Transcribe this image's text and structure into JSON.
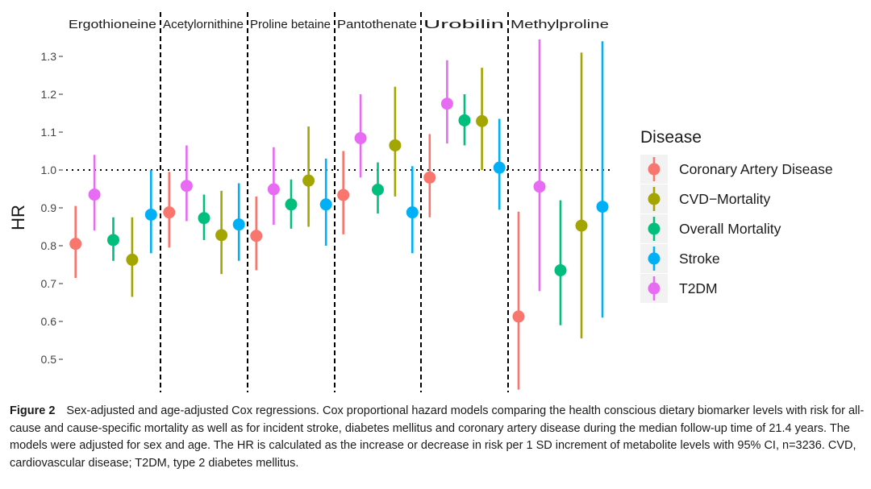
{
  "chart_data": {
    "type": "scatter",
    "subtype": "point-range faceted",
    "ylabel": "HR",
    "ylim": [
      0.42,
      1.36
    ],
    "yticks": [
      0.5,
      0.6,
      0.7,
      0.8,
      0.9,
      1.0,
      1.1,
      1.2,
      1.3
    ],
    "ytick_labels": [
      "0.5",
      "0.6",
      "0.7",
      "0.8",
      "0.9",
      "1.0",
      "1.1",
      "1.2",
      "1.3"
    ],
    "reference_line": 1.0,
    "legend": {
      "title": "Disease",
      "position": "right",
      "entries": [
        {
          "name": "Coronary Artery Disease",
          "color": "#F8766D"
        },
        {
          "name": "CVD−Mortality",
          "color": "#A3A500"
        },
        {
          "name": "Overall Mortality",
          "color": "#00BF7D"
        },
        {
          "name": "Stroke",
          "color": "#00B0F6"
        },
        {
          "name": "T2DM",
          "color": "#E76BF3"
        }
      ]
    },
    "panels": [
      {
        "label": "Ergothioneine",
        "points": [
          {
            "disease": "Coronary Artery Disease",
            "hr": 0.805,
            "lo": 0.715,
            "hi": 0.905
          },
          {
            "disease": "T2DM",
            "hr": 0.935,
            "lo": 0.84,
            "hi": 1.04
          },
          {
            "disease": "Overall Mortality",
            "hr": 0.815,
            "lo": 0.76,
            "hi": 0.875
          },
          {
            "disease": "CVD−Mortality",
            "hr": 0.763,
            "lo": 0.665,
            "hi": 0.875
          },
          {
            "disease": "Stroke",
            "hr": 0.882,
            "lo": 0.78,
            "hi": 1.0
          }
        ]
      },
      {
        "label": "Acetylornithine",
        "points": [
          {
            "disease": "Coronary Artery Disease",
            "hr": 0.888,
            "lo": 0.795,
            "hi": 0.995
          },
          {
            "disease": "T2DM",
            "hr": 0.958,
            "lo": 0.865,
            "hi": 1.065
          },
          {
            "disease": "Overall Mortality",
            "hr": 0.873,
            "lo": 0.815,
            "hi": 0.935
          },
          {
            "disease": "CVD−Mortality",
            "hr": 0.828,
            "lo": 0.725,
            "hi": 0.945
          },
          {
            "disease": "Stroke",
            "hr": 0.856,
            "lo": 0.76,
            "hi": 0.965
          }
        ]
      },
      {
        "label": "Proline betaine",
        "points": [
          {
            "disease": "Coronary Artery Disease",
            "hr": 0.826,
            "lo": 0.735,
            "hi": 0.93
          },
          {
            "disease": "T2DM",
            "hr": 0.949,
            "lo": 0.855,
            "hi": 1.06
          },
          {
            "disease": "Overall Mortality",
            "hr": 0.909,
            "lo": 0.845,
            "hi": 0.975
          },
          {
            "disease": "CVD−Mortality",
            "hr": 0.972,
            "lo": 0.85,
            "hi": 1.115
          },
          {
            "disease": "Stroke",
            "hr": 0.909,
            "lo": 0.8,
            "hi": 1.03
          }
        ]
      },
      {
        "label": "Pantothenate",
        "points": [
          {
            "disease": "Coronary Artery Disease",
            "hr": 0.934,
            "lo": 0.83,
            "hi": 1.05
          },
          {
            "disease": "T2DM",
            "hr": 1.084,
            "lo": 0.98,
            "hi": 1.2
          },
          {
            "disease": "Overall Mortality",
            "hr": 0.948,
            "lo": 0.885,
            "hi": 1.02
          },
          {
            "disease": "CVD−Mortality",
            "hr": 1.065,
            "lo": 0.93,
            "hi": 1.22
          },
          {
            "disease": "Stroke",
            "hr": 0.888,
            "lo": 0.78,
            "hi": 1.01
          }
        ]
      },
      {
        "label": "Urobilin",
        "points": [
          {
            "disease": "Coronary Artery Disease",
            "hr": 0.98,
            "lo": 0.875,
            "hi": 1.095
          },
          {
            "disease": "T2DM",
            "hr": 1.175,
            "lo": 1.07,
            "hi": 1.29
          },
          {
            "disease": "Overall Mortality",
            "hr": 1.131,
            "lo": 1.065,
            "hi": 1.2
          },
          {
            "disease": "CVD−Mortality",
            "hr": 1.129,
            "lo": 1.0,
            "hi": 1.27
          },
          {
            "disease": "Stroke",
            "hr": 1.006,
            "lo": 0.895,
            "hi": 1.135
          }
        ]
      },
      {
        "label": "Methylproline",
        "points": [
          {
            "disease": "Coronary Artery Disease",
            "hr": 0.613,
            "lo": 0.42,
            "hi": 0.89
          },
          {
            "disease": "T2DM",
            "hr": 0.956,
            "lo": 0.68,
            "hi": 1.345
          },
          {
            "disease": "Overall Mortality",
            "hr": 0.735,
            "lo": 0.59,
            "hi": 0.92
          },
          {
            "disease": "CVD−Mortality",
            "hr": 0.853,
            "lo": 0.555,
            "hi": 1.31
          },
          {
            "disease": "Stroke",
            "hr": 0.903,
            "lo": 0.61,
            "hi": 1.34
          }
        ]
      }
    ]
  },
  "caption": {
    "label": "Figure 2",
    "text": "Sex-adjusted and age-adjusted Cox regressions. Cox proportional hazard models comparing the health conscious dietary biomarker levels with risk for all-cause and cause-specific mortality as well as for incident stroke, diabetes mellitus and coronary artery disease during the median follow-up time of 21.4 years. The models were adjusted for sex and age. The HR is calculated as the increase or decrease in risk per 1 SD increment of metabolite levels with 95% CI, n=3236. CVD, cardiovascular disease; T2DM, type 2 diabetes mellitus."
  }
}
